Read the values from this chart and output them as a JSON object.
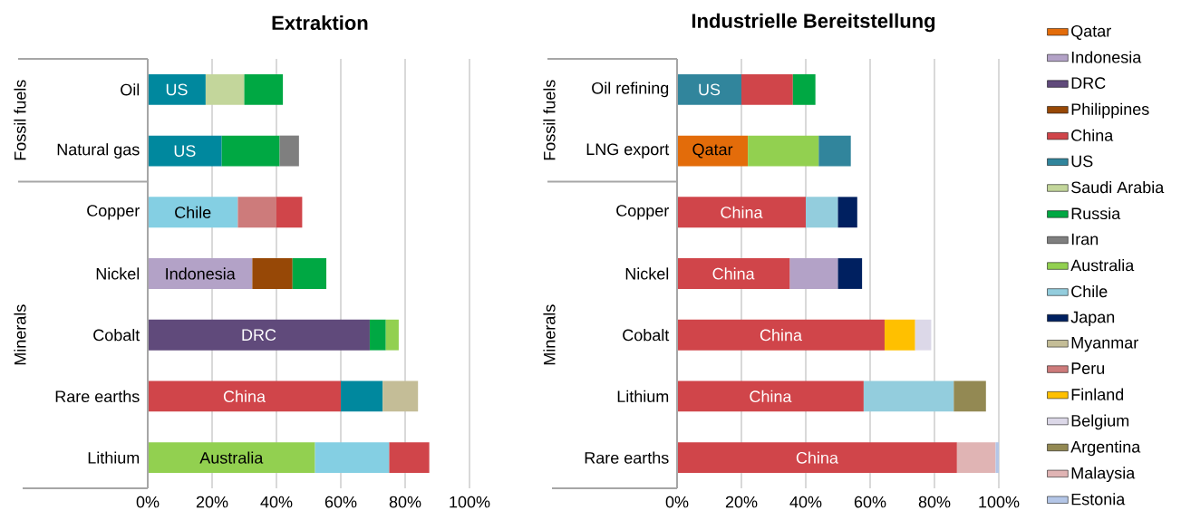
{
  "chart_data": [
    {
      "type": "bar",
      "orientation": "horizontal",
      "title": "Extraktion",
      "grid": "x",
      "categories": [
        "Oil",
        "Natural gas",
        "Copper",
        "Nickel",
        "Cobalt",
        "Rare earths",
        "Lithium"
      ],
      "annotations": [
        "Fossil fuels",
        "Minerals"
      ],
      "xlim": [
        0,
        100
      ],
      "xticks": [
        {
          "value": 0,
          "label": "0%"
        },
        {
          "value": 20,
          "label": "20%"
        },
        {
          "value": 40,
          "label": "40%"
        },
        {
          "value": 60,
          "label": "60%"
        },
        {
          "value": 80,
          "label": "80%"
        },
        {
          "value": 100,
          "label": "100%"
        }
      ],
      "series": [
        {
          "color": "#b3a2c7",
          "values": [
            null,
            null,
            null,
            32.5,
            null,
            null,
            null
          ],
          "base": [
            null,
            null,
            null,
            0,
            null,
            null,
            null
          ],
          "value_labels": [
            null,
            null,
            null,
            "Indonesia",
            null,
            null,
            null
          ]
        },
        {
          "color": "#604a7b",
          "values": [
            null,
            null,
            null,
            null,
            69,
            null,
            null
          ],
          "base": [
            null,
            null,
            null,
            null,
            0,
            null,
            null
          ],
          "value_labels": [
            null,
            null,
            null,
            null,
            "DRC",
            null,
            null
          ]
        },
        {
          "color": "#974806",
          "values": [
            null,
            null,
            null,
            12.5,
            null,
            null,
            null
          ],
          "base": [
            null,
            null,
            null,
            32.5,
            null,
            null,
            null
          ]
        },
        {
          "color": "#d0454a",
          "values": [
            null,
            null,
            8,
            null,
            null,
            60,
            12.5
          ],
          "base": [
            null,
            null,
            40,
            null,
            null,
            0,
            75
          ],
          "value_labels": [
            null,
            null,
            null,
            null,
            null,
            "China",
            null
          ]
        },
        {
          "color": "#00889e",
          "values": [
            18,
            23,
            null,
            null,
            null,
            13,
            null
          ],
          "base": [
            0,
            0,
            null,
            null,
            null,
            60,
            null
          ],
          "value_labels": [
            "US",
            "US",
            null,
            null,
            null,
            null,
            null
          ]
        },
        {
          "color": "#c3d69b",
          "values": [
            12,
            null,
            null,
            null,
            null,
            null,
            null
          ],
          "base": [
            18,
            null,
            null,
            null,
            null,
            null,
            null
          ]
        },
        {
          "color": "#00a843",
          "values": [
            12,
            18,
            null,
            10.5,
            5,
            null,
            null
          ],
          "base": [
            30,
            23,
            null,
            45,
            69,
            null,
            null
          ]
        },
        {
          "color": "#7f7f7f",
          "values": [
            null,
            6,
            null,
            null,
            null,
            null,
            null
          ],
          "base": [
            null,
            41,
            null,
            null,
            null,
            null,
            null
          ]
        },
        {
          "color": "#92d050",
          "values": [
            null,
            null,
            null,
            null,
            4,
            null,
            52
          ],
          "base": [
            null,
            null,
            null,
            null,
            74,
            null,
            0
          ],
          "value_labels": [
            null,
            null,
            null,
            null,
            null,
            null,
            "Australia"
          ]
        },
        {
          "color": "#84cfe3",
          "values": [
            null,
            null,
            28,
            null,
            null,
            null,
            23
          ],
          "base": [
            null,
            null,
            0,
            null,
            null,
            null,
            52
          ],
          "value_labels": [
            null,
            null,
            "Chile",
            null,
            null,
            null,
            null
          ]
        },
        {
          "color": "#c4bd97",
          "values": [
            null,
            null,
            null,
            null,
            null,
            11,
            null
          ],
          "base": [
            null,
            null,
            null,
            null,
            null,
            73,
            null
          ]
        },
        {
          "color": "#cd7b7b",
          "values": [
            null,
            null,
            12,
            null,
            null,
            null,
            null
          ],
          "base": [
            null,
            null,
            28,
            null,
            null,
            null,
            null
          ]
        }
      ]
    },
    {
      "type": "bar",
      "orientation": "horizontal",
      "title": "Industrielle Bereitstellung",
      "grid": "x",
      "legend": "right",
      "categories": [
        "Oil refining",
        "LNG export",
        "Copper",
        "Nickel",
        "Cobalt",
        "Lithium",
        "Rare earths"
      ],
      "annotations": [
        "Fossil fuels",
        "Minerals"
      ],
      "xlim": [
        0,
        100
      ],
      "xticks": [
        {
          "value": 0,
          "label": "0%"
        },
        {
          "value": 20,
          "label": "20%"
        },
        {
          "value": 40,
          "label": "40%"
        },
        {
          "value": 60,
          "label": "60%"
        },
        {
          "value": 80,
          "label": "80%"
        },
        {
          "value": 100,
          "label": "100%"
        }
      ],
      "series": [
        {
          "name": "Qatar",
          "color": "#e36c0a",
          "values": [
            null,
            22,
            null,
            null,
            null,
            null,
            null
          ],
          "base": [
            null,
            0,
            null,
            null,
            null,
            null,
            null
          ],
          "value_labels": [
            null,
            "Qatar",
            null,
            null,
            null,
            null,
            null
          ]
        },
        {
          "name": "Indonesia",
          "color": "#b3a2c7",
          "values": [
            null,
            null,
            null,
            15,
            null,
            null,
            null
          ],
          "base": [
            null,
            null,
            null,
            35,
            null,
            null,
            null
          ]
        },
        {
          "name": "DRC",
          "color": "#604a7b",
          "values": [
            null,
            null,
            null,
            null,
            null,
            null,
            null
          ],
          "base": [
            null,
            null,
            null,
            null,
            null,
            null,
            null
          ]
        },
        {
          "name": "Philippines",
          "color": "#974806",
          "values": [
            null,
            null,
            null,
            null,
            null,
            null,
            null
          ],
          "base": [
            null,
            null,
            null,
            null,
            null,
            null,
            null
          ]
        },
        {
          "name": "China",
          "color": "#d0454a",
          "values": [
            16,
            null,
            40,
            35,
            64.5,
            58,
            87
          ],
          "base": [
            20,
            null,
            0,
            0,
            0,
            0,
            0
          ],
          "value_labels": [
            null,
            null,
            "China",
            "China",
            "China",
            "China",
            "China"
          ]
        },
        {
          "name": "US",
          "color": "#31859c",
          "values": [
            20,
            10,
            null,
            null,
            null,
            null,
            null
          ],
          "base": [
            0,
            44,
            null,
            null,
            null,
            null,
            null
          ],
          "value_labels": [
            "US",
            null,
            null,
            null,
            null,
            null,
            null
          ]
        },
        {
          "name": "Saudi Arabia",
          "color": "#c3d69b",
          "values": [
            null,
            null,
            null,
            null,
            null,
            null,
            null
          ],
          "base": [
            null,
            null,
            null,
            null,
            null,
            null,
            null
          ]
        },
        {
          "name": "Russia",
          "color": "#00a843",
          "values": [
            7,
            null,
            null,
            null,
            null,
            null,
            null
          ],
          "base": [
            36,
            null,
            null,
            null,
            null,
            null,
            null
          ]
        },
        {
          "name": "Iran",
          "color": "#7f7f7f",
          "values": [
            null,
            null,
            null,
            null,
            null,
            null,
            null
          ],
          "base": [
            null,
            null,
            null,
            null,
            null,
            null,
            null
          ]
        },
        {
          "name": "Australia",
          "color": "#92d050",
          "values": [
            null,
            22,
            null,
            null,
            null,
            null,
            null
          ],
          "base": [
            null,
            22,
            null,
            null,
            null,
            null,
            null
          ]
        },
        {
          "name": "Chile",
          "color": "#93cddd",
          "values": [
            null,
            null,
            10,
            null,
            null,
            28,
            null
          ],
          "base": [
            null,
            null,
            40,
            null,
            null,
            58,
            null
          ]
        },
        {
          "name": "Japan",
          "color": "#002060",
          "values": [
            null,
            null,
            6,
            7.5,
            null,
            null,
            null
          ],
          "base": [
            null,
            null,
            50,
            50,
            null,
            null,
            null
          ]
        },
        {
          "name": "Myanmar",
          "color": "#c4bd97",
          "values": [
            null,
            null,
            null,
            null,
            null,
            null,
            null
          ],
          "base": [
            null,
            null,
            null,
            null,
            null,
            null,
            null
          ]
        },
        {
          "name": "Peru",
          "color": "#cd7b7b",
          "values": [
            null,
            null,
            null,
            null,
            null,
            null,
            null
          ],
          "base": [
            null,
            null,
            null,
            null,
            null,
            null,
            null
          ]
        },
        {
          "name": "Finland",
          "color": "#ffc000",
          "values": [
            null,
            null,
            null,
            null,
            9.5,
            null,
            null
          ],
          "base": [
            null,
            null,
            null,
            null,
            64.5,
            null,
            null
          ]
        },
        {
          "name": "Belgium",
          "color": "#dcd8e8",
          "values": [
            null,
            null,
            null,
            null,
            5,
            null,
            null
          ],
          "base": [
            null,
            null,
            null,
            null,
            74,
            null,
            null
          ]
        },
        {
          "name": "Argentina",
          "color": "#938953",
          "values": [
            null,
            null,
            null,
            null,
            null,
            10,
            null
          ],
          "base": [
            null,
            null,
            null,
            null,
            null,
            86,
            null
          ]
        },
        {
          "name": "Malaysia",
          "color": "#e0b4b4",
          "values": [
            null,
            null,
            null,
            null,
            null,
            null,
            12
          ],
          "base": [
            null,
            null,
            null,
            null,
            null,
            null,
            87
          ]
        },
        {
          "name": "Estonia",
          "color": "#b4c6e7",
          "values": [
            null,
            null,
            null,
            null,
            null,
            null,
            1
          ],
          "base": [
            null,
            null,
            null,
            null,
            null,
            null,
            99
          ]
        }
      ]
    }
  ]
}
